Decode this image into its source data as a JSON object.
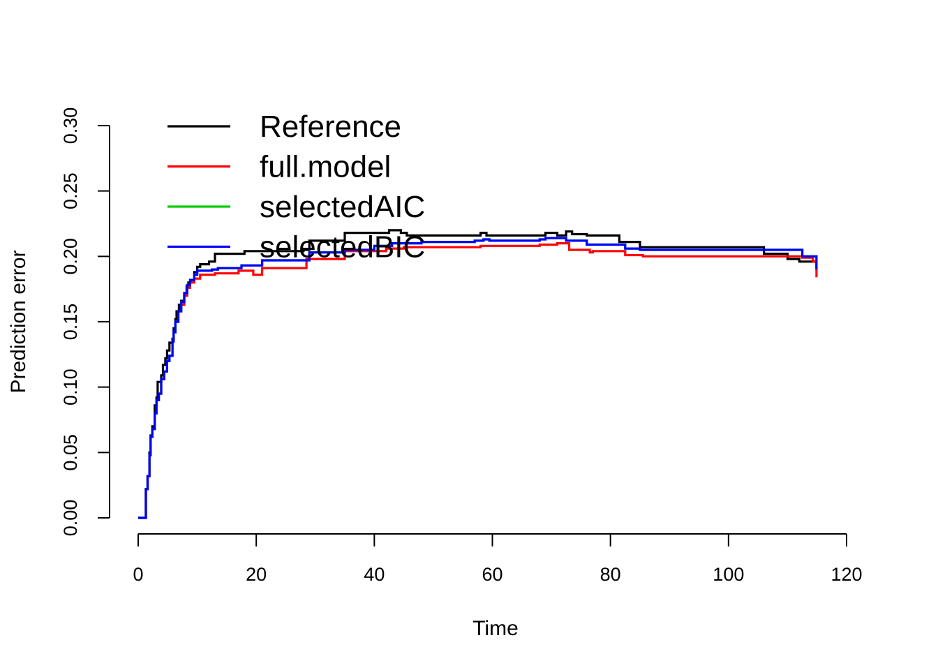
{
  "chart_data": {
    "type": "line",
    "step": true,
    "title": "",
    "xlabel": "Time",
    "ylabel": "Prediction error",
    "xlim": [
      0,
      120
    ],
    "ylim": [
      0,
      0.3
    ],
    "x_ticks": [
      "0",
      "20",
      "40",
      "60",
      "80",
      "100",
      "120"
    ],
    "y_ticks": [
      "0.00",
      "0.05",
      "0.10",
      "0.15",
      "0.20",
      "0.25",
      "0.30"
    ],
    "grid": false,
    "legend_position": "top-left",
    "series": [
      {
        "name": "Reference",
        "color": "#000000",
        "points": [
          [
            0,
            0
          ],
          [
            1.2,
            0
          ],
          [
            1.3,
            0.022
          ],
          [
            1.6,
            0.032
          ],
          [
            1.9,
            0.05
          ],
          [
            2.1,
            0.063
          ],
          [
            2.4,
            0.07
          ],
          [
            2.8,
            0.086
          ],
          [
            3.1,
            0.092
          ],
          [
            3.3,
            0.104
          ],
          [
            3.9,
            0.109
          ],
          [
            4.2,
            0.117
          ],
          [
            4.6,
            0.122
          ],
          [
            4.9,
            0.128
          ],
          [
            5.3,
            0.134
          ],
          [
            5.8,
            0.137
          ],
          [
            6.0,
            0.145
          ],
          [
            6.3,
            0.152
          ],
          [
            6.5,
            0.158
          ],
          [
            6.9,
            0.163
          ],
          [
            7.3,
            0.166
          ],
          [
            7.8,
            0.17
          ],
          [
            8.2,
            0.177
          ],
          [
            8.5,
            0.18
          ],
          [
            9.0,
            0.182
          ],
          [
            9.5,
            0.188
          ],
          [
            10.0,
            0.192
          ],
          [
            10.5,
            0.194
          ],
          [
            12.0,
            0.196
          ],
          [
            13.0,
            0.202
          ],
          [
            18.0,
            0.204
          ],
          [
            28.0,
            0.205
          ],
          [
            29.0,
            0.212
          ],
          [
            35.0,
            0.218
          ],
          [
            42.5,
            0.22
          ],
          [
            44.5,
            0.218
          ],
          [
            45.5,
            0.216
          ],
          [
            58.0,
            0.218
          ],
          [
            59.0,
            0.216
          ],
          [
            69.0,
            0.218
          ],
          [
            71.0,
            0.216
          ],
          [
            72.5,
            0.219
          ],
          [
            73.5,
            0.217
          ],
          [
            76.0,
            0.216
          ],
          [
            81.5,
            0.211
          ],
          [
            85.0,
            0.207
          ],
          [
            106.0,
            0.202
          ],
          [
            110.0,
            0.198
          ],
          [
            112.0,
            0.196
          ],
          [
            114.9,
            0.19
          ]
        ]
      },
      {
        "name": "full.model",
        "color": "#ff0000",
        "points": [
          [
            0,
            0
          ],
          [
            1.2,
            0
          ],
          [
            1.3,
            0.022
          ],
          [
            1.6,
            0.032
          ],
          [
            1.9,
            0.048
          ],
          [
            2.1,
            0.062
          ],
          [
            2.4,
            0.068
          ],
          [
            2.8,
            0.08
          ],
          [
            3.1,
            0.09
          ],
          [
            3.5,
            0.095
          ],
          [
            3.9,
            0.106
          ],
          [
            4.4,
            0.112
          ],
          [
            4.9,
            0.12
          ],
          [
            5.3,
            0.124
          ],
          [
            5.8,
            0.135
          ],
          [
            6.0,
            0.142
          ],
          [
            6.3,
            0.15
          ],
          [
            6.8,
            0.158
          ],
          [
            7.3,
            0.163
          ],
          [
            7.8,
            0.17
          ],
          [
            8.3,
            0.176
          ],
          [
            8.8,
            0.18
          ],
          [
            9.5,
            0.183
          ],
          [
            10.5,
            0.186
          ],
          [
            13.0,
            0.187
          ],
          [
            17.0,
            0.189
          ],
          [
            19.5,
            0.186
          ],
          [
            21.0,
            0.191
          ],
          [
            28.5,
            0.198
          ],
          [
            35.0,
            0.204
          ],
          [
            42.0,
            0.206
          ],
          [
            45.0,
            0.207
          ],
          [
            58.0,
            0.208
          ],
          [
            68.0,
            0.209
          ],
          [
            71.0,
            0.21
          ],
          [
            73.0,
            0.205
          ],
          [
            76.5,
            0.203
          ],
          [
            77.0,
            0.204
          ],
          [
            82.5,
            0.201
          ],
          [
            85.5,
            0.2
          ],
          [
            106.0,
            0.2
          ],
          [
            112.5,
            0.199
          ],
          [
            114.3,
            0.196
          ],
          [
            114.9,
            0.184
          ]
        ]
      },
      {
        "name": "selectedAIC",
        "color": "#00cd00",
        "points": [
          [
            0,
            0
          ],
          [
            1.2,
            0
          ],
          [
            1.3,
            0.022
          ],
          [
            1.6,
            0.032
          ],
          [
            1.9,
            0.048
          ],
          [
            2.1,
            0.062
          ],
          [
            2.4,
            0.068
          ],
          [
            2.8,
            0.08
          ],
          [
            3.1,
            0.09
          ],
          [
            3.5,
            0.095
          ],
          [
            3.9,
            0.106
          ],
          [
            4.4,
            0.112
          ],
          [
            4.9,
            0.12
          ],
          [
            5.3,
            0.124
          ],
          [
            5.8,
            0.135
          ],
          [
            6.0,
            0.142
          ],
          [
            6.3,
            0.15
          ],
          [
            6.8,
            0.158
          ],
          [
            7.3,
            0.165
          ],
          [
            7.8,
            0.172
          ],
          [
            8.3,
            0.178
          ],
          [
            8.8,
            0.182
          ],
          [
            9.5,
            0.186
          ],
          [
            10.0,
            0.189
          ],
          [
            12.5,
            0.19
          ],
          [
            13.5,
            0.191
          ],
          [
            17.5,
            0.193
          ],
          [
            21.0,
            0.197
          ],
          [
            29.0,
            0.203
          ],
          [
            35.0,
            0.205
          ],
          [
            40.0,
            0.208
          ],
          [
            43.0,
            0.21
          ],
          [
            48.0,
            0.211
          ],
          [
            57.0,
            0.212
          ],
          [
            58.5,
            0.213
          ],
          [
            59.5,
            0.212
          ],
          [
            68.0,
            0.213
          ],
          [
            69.0,
            0.214
          ],
          [
            72.5,
            0.212
          ],
          [
            76.0,
            0.209
          ],
          [
            82.5,
            0.206
          ],
          [
            85.0,
            0.205
          ],
          [
            106.0,
            0.205
          ],
          [
            109.0,
            0.205
          ],
          [
            112.5,
            0.2
          ],
          [
            114.9,
            0.19
          ]
        ]
      },
      {
        "name": "selectedBIC",
        "color": "#0000ff",
        "points": [
          [
            0,
            0
          ],
          [
            1.2,
            0
          ],
          [
            1.3,
            0.022
          ],
          [
            1.6,
            0.032
          ],
          [
            1.9,
            0.048
          ],
          [
            2.1,
            0.062
          ],
          [
            2.4,
            0.068
          ],
          [
            2.8,
            0.08
          ],
          [
            3.1,
            0.09
          ],
          [
            3.5,
            0.095
          ],
          [
            3.9,
            0.106
          ],
          [
            4.4,
            0.112
          ],
          [
            4.9,
            0.12
          ],
          [
            5.3,
            0.124
          ],
          [
            5.8,
            0.135
          ],
          [
            6.0,
            0.142
          ],
          [
            6.3,
            0.15
          ],
          [
            6.8,
            0.158
          ],
          [
            7.3,
            0.165
          ],
          [
            7.8,
            0.172
          ],
          [
            8.3,
            0.178
          ],
          [
            8.8,
            0.182
          ],
          [
            9.5,
            0.186
          ],
          [
            10.0,
            0.189
          ],
          [
            12.5,
            0.19
          ],
          [
            13.5,
            0.191
          ],
          [
            17.5,
            0.193
          ],
          [
            21.0,
            0.197
          ],
          [
            29.0,
            0.203
          ],
          [
            35.0,
            0.205
          ],
          [
            40.0,
            0.208
          ],
          [
            43.0,
            0.21
          ],
          [
            48.0,
            0.211
          ],
          [
            57.0,
            0.212
          ],
          [
            58.5,
            0.213
          ],
          [
            59.5,
            0.212
          ],
          [
            68.0,
            0.213
          ],
          [
            69.0,
            0.214
          ],
          [
            72.5,
            0.212
          ],
          [
            76.0,
            0.209
          ],
          [
            82.5,
            0.206
          ],
          [
            85.0,
            0.205
          ],
          [
            106.0,
            0.205
          ],
          [
            109.0,
            0.205
          ],
          [
            112.5,
            0.2
          ],
          [
            114.9,
            0.19
          ]
        ]
      }
    ]
  }
}
